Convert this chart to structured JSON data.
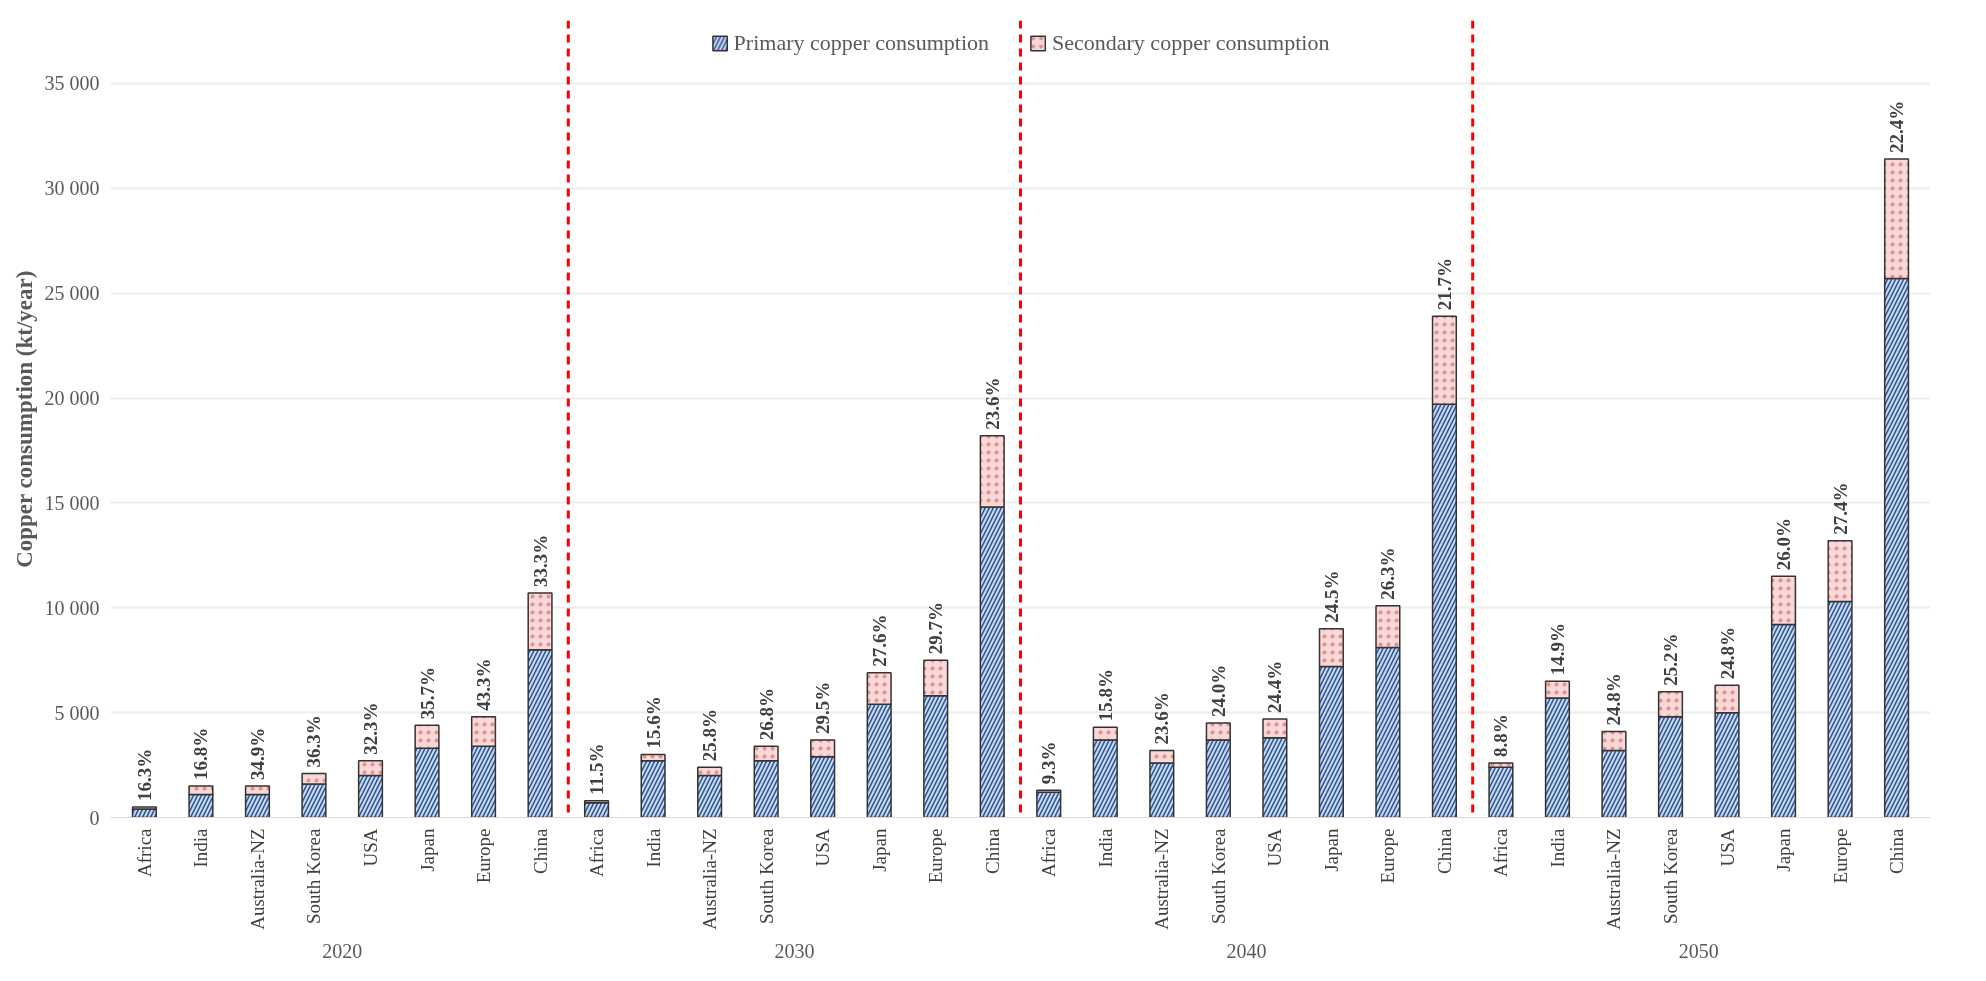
{
  "chart_data": {
    "type": "bar",
    "stacked": true,
    "ylabel": "Copper consumption (kt/year)",
    "categories": [
      "Africa",
      "India",
      "Australia-NZ",
      "South Korea",
      "USA",
      "Japan",
      "Europe",
      "China",
      "Africa",
      "India",
      "Australia-NZ",
      "South Korea",
      "USA",
      "Japan",
      "Europe",
      "China",
      "Africa",
      "India",
      "Australia-NZ",
      "South Korea",
      "USA",
      "Japan",
      "Europe",
      "China",
      "Africa",
      "India",
      "Australia-NZ",
      "South Korea",
      "USA",
      "Japan",
      "Europe",
      "China"
    ],
    "series": [
      {
        "name": "Primary copper consumption",
        "color": "#c5d9f1",
        "values": [
          400,
          1100,
          1100,
          1600,
          2000,
          3300,
          3400,
          8000,
          700,
          2700,
          2000,
          2700,
          2900,
          5400,
          5800,
          14800,
          1200,
          3700,
          2600,
          3700,
          3800,
          7200,
          8100,
          19700,
          2400,
          5700,
          3200,
          4800,
          5000,
          9200,
          10300,
          25700
        ]
      },
      {
        "name": "Secondary copper consumption",
        "color": "#f8d7d7",
        "values": [
          100,
          400,
          400,
          500,
          700,
          1100,
          1400,
          2700,
          100,
          300,
          400,
          700,
          800,
          1500,
          1700,
          3400,
          100,
          600,
          600,
          800,
          900,
          1800,
          2000,
          4200,
          200,
          800,
          900,
          1200,
          1300,
          2300,
          2900,
          5700
        ]
      }
    ],
    "ylim": [
      0,
      38000
    ],
    "yticks": [
      {
        "value": 0,
        "label": "0"
      },
      {
        "value": 5000,
        "label": "5 000"
      },
      {
        "value": 10000,
        "label": "10 000"
      },
      {
        "value": 15000,
        "label": "15 000"
      },
      {
        "value": 20000,
        "label": "20 000"
      },
      {
        "value": 25000,
        "label": "25 000"
      },
      {
        "value": 30000,
        "label": "30 000"
      },
      {
        "value": 35000,
        "label": "35 000"
      }
    ],
    "annotations": [
      "2020",
      "2030",
      "2040",
      "2050",
      "16.3%",
      "16.8%",
      "34.9%",
      "36.3%",
      "32.3%",
      "35.7%",
      "43.3%",
      "33.3%",
      "11.5%",
      "15.6%",
      "25.8%",
      "26.8%",
      "29.5%",
      "27.6%",
      "29.7%",
      "23.6%",
      "9.3%",
      "15.8%",
      "23.6%",
      "24.0%",
      "24.4%",
      "24.5%",
      "26.3%",
      "21.7%",
      "8.8%",
      "14.9%",
      "24.8%",
      "25.2%",
      "24.8%",
      "26.0%",
      "27.4%",
      "22.4%"
    ],
    "grid": "y",
    "legend": "top"
  }
}
